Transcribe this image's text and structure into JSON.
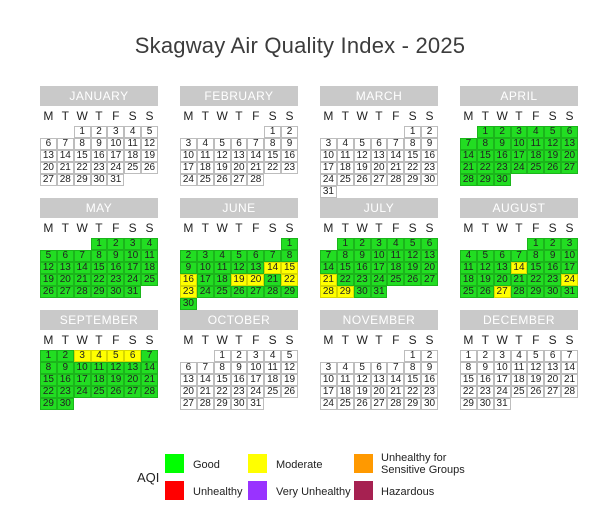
{
  "chart_data": {
    "type": "calendar-heatmap",
    "title": "Skagway Air Quality Index - 2025",
    "weekdays": [
      "M",
      "T",
      "W",
      "T",
      "F",
      "S",
      "S"
    ],
    "months": [
      {
        "name": "JANUARY",
        "start_dow": 2,
        "days": 31,
        "good": [],
        "moderate": []
      },
      {
        "name": "FEBRUARY",
        "start_dow": 5,
        "days": 28,
        "good": [],
        "moderate": []
      },
      {
        "name": "MARCH",
        "start_dow": 5,
        "days": 31,
        "good": [],
        "moderate": []
      },
      {
        "name": "APRIL",
        "start_dow": 1,
        "days": 30,
        "good": [
          1,
          2,
          3,
          4,
          5,
          6,
          7,
          8,
          9,
          10,
          11,
          12,
          13,
          14,
          15,
          16,
          17,
          18,
          19,
          20,
          21,
          22,
          23,
          24,
          25,
          26,
          27,
          28,
          29,
          30
        ],
        "moderate": []
      },
      {
        "name": "MAY",
        "start_dow": 3,
        "days": 31,
        "good": [
          1,
          2,
          3,
          4,
          5,
          6,
          7,
          8,
          9,
          10,
          11,
          12,
          13,
          14,
          15,
          16,
          17,
          18,
          19,
          20,
          21,
          22,
          23,
          24,
          25,
          26,
          27,
          28,
          29,
          30,
          31
        ],
        "moderate": []
      },
      {
        "name": "JUNE",
        "start_dow": 6,
        "days": 30,
        "good": [
          1,
          2,
          3,
          4,
          5,
          6,
          7,
          8,
          9,
          10,
          11,
          12,
          13,
          17,
          18,
          21,
          24,
          25,
          26,
          27,
          28,
          29,
          30
        ],
        "moderate": [
          14,
          15,
          16,
          19,
          20,
          22,
          23
        ]
      },
      {
        "name": "JULY",
        "start_dow": 1,
        "days": 31,
        "good": [
          1,
          2,
          3,
          4,
          5,
          6,
          7,
          8,
          9,
          10,
          11,
          12,
          13,
          14,
          15,
          16,
          17,
          18,
          19,
          20,
          22,
          23,
          24,
          25,
          26,
          27,
          30,
          31
        ],
        "moderate": [
          21,
          28,
          29
        ]
      },
      {
        "name": "AUGUST",
        "start_dow": 4,
        "days": 31,
        "good": [
          1,
          2,
          3,
          4,
          5,
          6,
          7,
          8,
          9,
          10,
          11,
          12,
          13,
          15,
          16,
          17,
          18,
          19,
          20,
          21,
          22,
          23,
          25,
          26,
          28,
          29,
          30,
          31
        ],
        "moderate": [
          14,
          24,
          27
        ]
      },
      {
        "name": "SEPTEMBER",
        "start_dow": 0,
        "days": 30,
        "good": [
          1,
          2,
          7,
          8,
          9,
          10,
          11,
          12,
          13,
          14,
          15,
          16,
          17,
          18,
          19,
          20,
          21,
          22,
          23,
          24,
          25,
          26,
          27,
          28,
          29,
          30
        ],
        "moderate": [
          3,
          4,
          5,
          6
        ]
      },
      {
        "name": "OCTOBER",
        "start_dow": 2,
        "days": 31,
        "good": [],
        "moderate": []
      },
      {
        "name": "NOVEMBER",
        "start_dow": 5,
        "days": 30,
        "good": [],
        "moderate": []
      },
      {
        "name": "DECEMBER",
        "start_dow": 0,
        "days": 31,
        "good": [],
        "moderate": []
      }
    ],
    "legend": {
      "title": "AQI",
      "items": [
        {
          "label": "Good",
          "color": "#00ff00"
        },
        {
          "label": "Moderate",
          "color": "#ffff00"
        },
        {
          "label": "Unhealthy for Sensitive Groups",
          "color": "#ff9900"
        },
        {
          "label": "Unhealthy",
          "color": "#ff0000"
        },
        {
          "label": "Very Unhealthy",
          "color": "#9933ff"
        },
        {
          "label": "Hazardous",
          "color": "#a62151"
        }
      ]
    }
  }
}
